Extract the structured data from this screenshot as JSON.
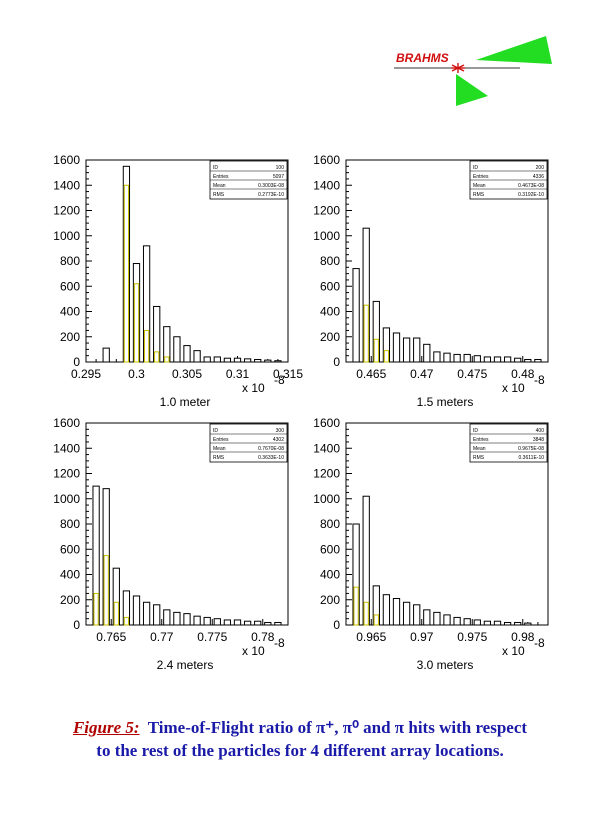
{
  "logo": {
    "text": "BRAHMS"
  },
  "caption": {
    "lead": "Figure 5:",
    "line1": "Time-of-Flight ratio of π⁺, π⁰ and π  hits with respect",
    "line2": "to the rest of the particles for 4 different array locations."
  },
  "chart_data": [
    {
      "type": "bar",
      "caption": "1.0 meter",
      "exponent": "x 10",
      "exponent_power": "-8",
      "ylim": [
        0,
        1600
      ],
      "yticks": [
        0,
        200,
        400,
        600,
        800,
        1000,
        1200,
        1400,
        1600
      ],
      "xlim": [
        0.295,
        0.315
      ],
      "xticks": [
        0.295,
        0.3,
        0.305,
        0.31,
        0.315
      ],
      "xtick_labels": [
        "0.295",
        "0.3",
        "0.305",
        "0.31",
        "0.315"
      ],
      "stats": [
        [
          "ID",
          "100"
        ],
        [
          "Entries",
          "5097"
        ],
        [
          "Mean",
          "0.3003E-08"
        ],
        [
          "RMS",
          "0.2773E-10"
        ]
      ],
      "bins": [
        {
          "x": 0.297,
          "y": 110
        },
        {
          "x": 0.299,
          "y": 1550
        },
        {
          "x": 0.3,
          "y": 780
        },
        {
          "x": 0.301,
          "y": 920
        },
        {
          "x": 0.302,
          "y": 440
        },
        {
          "x": 0.303,
          "y": 280
        },
        {
          "x": 0.304,
          "y": 200
        },
        {
          "x": 0.305,
          "y": 130
        },
        {
          "x": 0.306,
          "y": 90
        },
        {
          "x": 0.307,
          "y": 40
        },
        {
          "x": 0.308,
          "y": 40
        },
        {
          "x": 0.309,
          "y": 30
        },
        {
          "x": 0.31,
          "y": 30
        },
        {
          "x": 0.311,
          "y": 25
        },
        {
          "x": 0.312,
          "y": 20
        },
        {
          "x": 0.313,
          "y": 15
        },
        {
          "x": 0.314,
          "y": 10
        }
      ],
      "yellow_bins": [
        {
          "x": 0.299,
          "y": 1400
        },
        {
          "x": 0.3,
          "y": 620
        },
        {
          "x": 0.301,
          "y": 250
        },
        {
          "x": 0.302,
          "y": 80
        },
        {
          "x": 0.303,
          "y": 40
        }
      ]
    },
    {
      "type": "bar",
      "caption": "1.5 meters",
      "exponent": "x 10",
      "exponent_power": "-8",
      "ylim": [
        0,
        1600
      ],
      "yticks": [
        0,
        200,
        400,
        600,
        800,
        1000,
        1200,
        1400,
        1600
      ],
      "xlim": [
        0.4625,
        0.4825
      ],
      "xticks": [
        0.465,
        0.47,
        0.475,
        0.48
      ],
      "xtick_labels": [
        "0.465",
        "0.47",
        "0.475",
        "0.48"
      ],
      "stats": [
        [
          "ID",
          "200"
        ],
        [
          "Entries",
          "4336"
        ],
        [
          "Mean",
          "0.4673E-08"
        ],
        [
          "RMS",
          "0.3192E-10"
        ]
      ],
      "bins": [
        {
          "x": 0.4635,
          "y": 740
        },
        {
          "x": 0.4645,
          "y": 1060
        },
        {
          "x": 0.4655,
          "y": 480
        },
        {
          "x": 0.4665,
          "y": 270
        },
        {
          "x": 0.4675,
          "y": 230
        },
        {
          "x": 0.4685,
          "y": 190
        },
        {
          "x": 0.4695,
          "y": 190
        },
        {
          "x": 0.4705,
          "y": 140
        },
        {
          "x": 0.4715,
          "y": 80
        },
        {
          "x": 0.4725,
          "y": 70
        },
        {
          "x": 0.4735,
          "y": 60
        },
        {
          "x": 0.4745,
          "y": 60
        },
        {
          "x": 0.4755,
          "y": 50
        },
        {
          "x": 0.4765,
          "y": 40
        },
        {
          "x": 0.4775,
          "y": 40
        },
        {
          "x": 0.4785,
          "y": 40
        },
        {
          "x": 0.4795,
          "y": 30
        },
        {
          "x": 0.4805,
          "y": 20
        },
        {
          "x": 0.4815,
          "y": 20
        }
      ],
      "yellow_bins": [
        {
          "x": 0.4645,
          "y": 450
        },
        {
          "x": 0.4655,
          "y": 180
        },
        {
          "x": 0.4665,
          "y": 90
        }
      ]
    },
    {
      "type": "bar",
      "caption": "2.4 meters",
      "exponent": "x 10",
      "exponent_power": "-8",
      "ylim": [
        0,
        1600
      ],
      "yticks": [
        0,
        200,
        400,
        600,
        800,
        1000,
        1200,
        1400,
        1600
      ],
      "xlim": [
        0.7625,
        0.7825
      ],
      "xticks": [
        0.765,
        0.77,
        0.775,
        0.78
      ],
      "xtick_labels": [
        "0.765",
        "0.77",
        "0.775",
        "0.78"
      ],
      "stats": [
        [
          "ID",
          "300"
        ],
        [
          "Entries",
          "4302"
        ],
        [
          "Mean",
          "0.7670E-08"
        ],
        [
          "RMS",
          "0.3633E-10"
        ]
      ],
      "bins": [
        {
          "x": 0.7635,
          "y": 1100
        },
        {
          "x": 0.7645,
          "y": 1080
        },
        {
          "x": 0.7655,
          "y": 450
        },
        {
          "x": 0.7665,
          "y": 270
        },
        {
          "x": 0.7675,
          "y": 230
        },
        {
          "x": 0.7685,
          "y": 180
        },
        {
          "x": 0.7695,
          "y": 160
        },
        {
          "x": 0.7705,
          "y": 120
        },
        {
          "x": 0.7715,
          "y": 100
        },
        {
          "x": 0.7725,
          "y": 90
        },
        {
          "x": 0.7735,
          "y": 70
        },
        {
          "x": 0.7745,
          "y": 60
        },
        {
          "x": 0.7755,
          "y": 50
        },
        {
          "x": 0.7765,
          "y": 40
        },
        {
          "x": 0.7775,
          "y": 40
        },
        {
          "x": 0.7785,
          "y": 30
        },
        {
          "x": 0.7795,
          "y": 30
        },
        {
          "x": 0.7805,
          "y": 20
        },
        {
          "x": 0.7815,
          "y": 20
        }
      ],
      "yellow_bins": [
        {
          "x": 0.7635,
          "y": 250
        },
        {
          "x": 0.7645,
          "y": 550
        },
        {
          "x": 0.7655,
          "y": 180
        },
        {
          "x": 0.7665,
          "y": 60
        }
      ]
    },
    {
      "type": "bar",
      "caption": "3.0 meters",
      "exponent": "x 10",
      "exponent_power": "-8",
      "ylim": [
        0,
        1600
      ],
      "yticks": [
        0,
        200,
        400,
        600,
        800,
        1000,
        1200,
        1400,
        1600
      ],
      "xlim": [
        0.9625,
        0.9825
      ],
      "xticks": [
        0.965,
        0.97,
        0.975,
        0.98
      ],
      "xtick_labels": [
        "0.965",
        "0.97",
        "0.975",
        "0.98"
      ],
      "stats": [
        [
          "ID",
          "400"
        ],
        [
          "Entries",
          "3848"
        ],
        [
          "Mean",
          "0.9675E-08"
        ],
        [
          "RMS",
          "0.3611E-10"
        ]
      ],
      "bins": [
        {
          "x": 0.9635,
          "y": 800
        },
        {
          "x": 0.9645,
          "y": 1020
        },
        {
          "x": 0.9655,
          "y": 310
        },
        {
          "x": 0.9665,
          "y": 240
        },
        {
          "x": 0.9675,
          "y": 210
        },
        {
          "x": 0.9685,
          "y": 180
        },
        {
          "x": 0.9695,
          "y": 160
        },
        {
          "x": 0.9705,
          "y": 120
        },
        {
          "x": 0.9715,
          "y": 100
        },
        {
          "x": 0.9725,
          "y": 80
        },
        {
          "x": 0.9735,
          "y": 60
        },
        {
          "x": 0.9745,
          "y": 50
        },
        {
          "x": 0.9755,
          "y": 40
        },
        {
          "x": 0.9765,
          "y": 30
        },
        {
          "x": 0.9775,
          "y": 30
        },
        {
          "x": 0.9785,
          "y": 20
        },
        {
          "x": 0.9795,
          "y": 20
        },
        {
          "x": 0.9805,
          "y": 15
        }
      ],
      "yellow_bins": [
        {
          "x": 0.9635,
          "y": 300
        },
        {
          "x": 0.9645,
          "y": 180
        },
        {
          "x": 0.9655,
          "y": 80
        }
      ]
    }
  ]
}
